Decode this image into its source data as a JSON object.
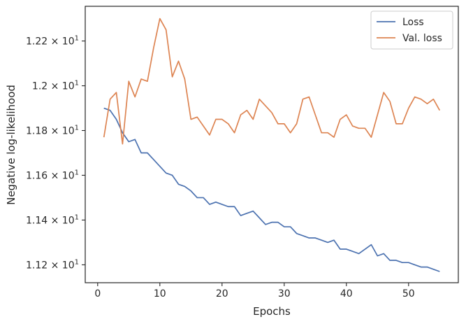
{
  "chart_data": {
    "type": "line",
    "title": "",
    "xlabel": "Epochs",
    "ylabel": "Negative log-likelihood",
    "xlim": [
      -2,
      58
    ],
    "ylim": [
      11.12,
      12.355
    ],
    "grid": false,
    "legend_position": "top-right",
    "x_ticks": [
      0,
      10,
      20,
      30,
      40,
      50
    ],
    "x_tick_labels": [
      "0",
      "10",
      "20",
      "30",
      "40",
      "50"
    ],
    "y_ticks": [
      11.2,
      11.4,
      11.6,
      11.8,
      12.0,
      12.2
    ],
    "y_tick_labels": [
      {
        "mantissa": "1.12",
        "times": "×",
        "base": "10",
        "exp": "1"
      },
      {
        "mantissa": "1.14",
        "times": "×",
        "base": "10",
        "exp": "1"
      },
      {
        "mantissa": "1.16",
        "times": "×",
        "base": "10",
        "exp": "1"
      },
      {
        "mantissa": "1.18",
        "times": "×",
        "base": "10",
        "exp": "1"
      },
      {
        "mantissa": "1.2",
        "times": "×",
        "base": "10",
        "exp": "1"
      },
      {
        "mantissa": "1.22",
        "times": "×",
        "base": "10",
        "exp": "1"
      }
    ],
    "x": [
      1,
      2,
      3,
      4,
      5,
      6,
      7,
      8,
      9,
      10,
      11,
      12,
      13,
      14,
      15,
      16,
      17,
      18,
      19,
      20,
      21,
      22,
      23,
      24,
      25,
      26,
      27,
      28,
      29,
      30,
      31,
      32,
      33,
      34,
      35,
      36,
      37,
      38,
      39,
      40,
      41,
      42,
      43,
      44,
      45,
      46,
      47,
      48,
      49,
      50,
      51,
      52,
      53,
      54,
      55
    ],
    "series": [
      {
        "name": "Loss",
        "color": "#4c72b0",
        "values": [
          11.9,
          11.89,
          11.85,
          11.79,
          11.75,
          11.76,
          11.7,
          11.7,
          11.67,
          11.64,
          11.61,
          11.6,
          11.56,
          11.55,
          11.53,
          11.5,
          11.5,
          11.47,
          11.48,
          11.47,
          11.46,
          11.46,
          11.42,
          11.43,
          11.44,
          11.41,
          11.38,
          11.39,
          11.39,
          11.37,
          11.37,
          11.34,
          11.33,
          11.32,
          11.32,
          11.31,
          11.3,
          11.31,
          11.27,
          11.27,
          11.26,
          11.25,
          11.27,
          11.29,
          11.24,
          11.25,
          11.22,
          11.22,
          11.21,
          11.21,
          11.2,
          11.19,
          11.19,
          11.18,
          11.17
        ]
      },
      {
        "name": "Val. loss",
        "color": "#dd8452",
        "values": [
          11.77,
          11.94,
          11.97,
          11.74,
          12.02,
          11.95,
          12.03,
          12.02,
          12.17,
          12.3,
          12.25,
          12.04,
          12.11,
          12.03,
          11.85,
          11.86,
          11.82,
          11.78,
          11.85,
          11.85,
          11.83,
          11.79,
          11.87,
          11.89,
          11.85,
          11.94,
          11.91,
          11.88,
          11.83,
          11.83,
          11.79,
          11.83,
          11.94,
          11.95,
          11.87,
          11.79,
          11.79,
          11.77,
          11.85,
          11.87,
          11.82,
          11.81,
          11.81,
          11.77,
          11.87,
          11.97,
          11.93,
          11.83,
          11.83,
          11.9,
          11.95,
          11.94,
          11.92,
          11.94,
          11.89
        ]
      }
    ]
  }
}
